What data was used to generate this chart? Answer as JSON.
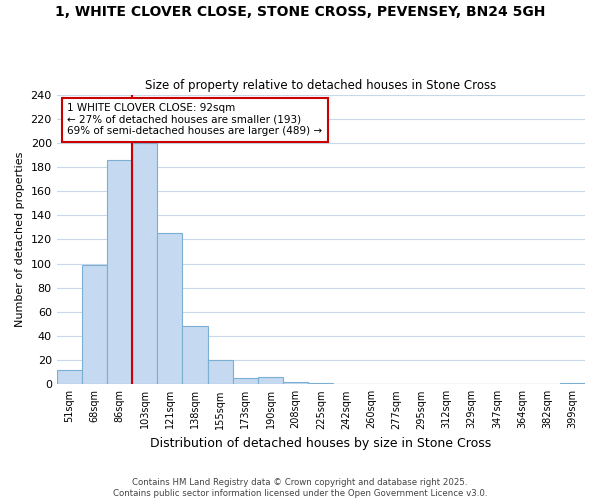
{
  "title1": "1, WHITE CLOVER CLOSE, STONE CROSS, PEVENSEY, BN24 5GH",
  "title2": "Size of property relative to detached houses in Stone Cross",
  "xlabel": "Distribution of detached houses by size in Stone Cross",
  "ylabel": "Number of detached properties",
  "bar_labels": [
    "51sqm",
    "68sqm",
    "86sqm",
    "103sqm",
    "121sqm",
    "138sqm",
    "155sqm",
    "173sqm",
    "190sqm",
    "208sqm",
    "225sqm",
    "242sqm",
    "260sqm",
    "277sqm",
    "295sqm",
    "312sqm",
    "329sqm",
    "347sqm",
    "364sqm",
    "382sqm",
    "399sqm"
  ],
  "bar_values": [
    12,
    99,
    186,
    200,
    125,
    48,
    20,
    5,
    6,
    2,
    1,
    0,
    0,
    0,
    0,
    0,
    0,
    0,
    0,
    0,
    1
  ],
  "bar_color": "#c5d9f0",
  "bar_edge_color": "#7bafd4",
  "background_color": "#ffffff",
  "grid_color": "#c8d8e8",
  "vline_color": "#cc0000",
  "vline_bin": 2,
  "annotation_title": "1 WHITE CLOVER CLOSE: 92sqm",
  "annotation_line1": "← 27% of detached houses are smaller (193)",
  "annotation_line2": "69% of semi-detached houses are larger (489) →",
  "annotation_box_color": "#ffffff",
  "annotation_border_color": "#cc0000",
  "ylim": [
    0,
    240
  ],
  "yticks": [
    0,
    20,
    40,
    60,
    80,
    100,
    120,
    140,
    160,
    180,
    200,
    220,
    240
  ],
  "footer1": "Contains HM Land Registry data © Crown copyright and database right 2025.",
  "footer2": "Contains public sector information licensed under the Open Government Licence v3.0."
}
